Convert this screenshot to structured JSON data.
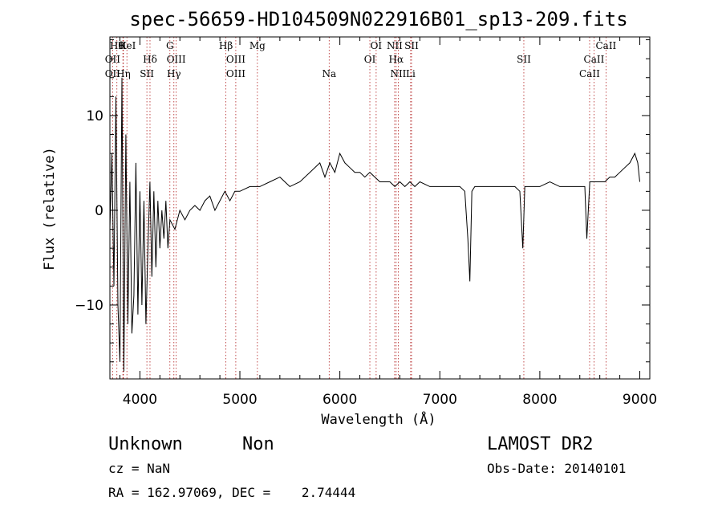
{
  "chart_data": {
    "type": "line",
    "title": "spec-56659-HD104509N022916B01_sp13-209.fits",
    "xlabel": "Wavelength (Å)",
    "ylabel": "Flux (relative)",
    "xlim": [
      3700,
      9100
    ],
    "ylim": [
      -17.8,
      18.3
    ],
    "x_ticks": [
      4000,
      5000,
      6000,
      7000,
      8000,
      9000
    ],
    "y_ticks": [
      -10,
      0,
      10
    ],
    "series": [
      {
        "x": [
          3700,
          3720,
          3740,
          3760,
          3780,
          3800,
          3820,
          3840,
          3860,
          3880,
          3900,
          3920,
          3940,
          3960,
          3980,
          4000,
          4020,
          4040,
          4060,
          4080,
          4100,
          4120,
          4140,
          4160,
          4180,
          4200,
          4220,
          4240,
          4260,
          4280,
          4300,
          4350,
          4400,
          4450,
          4500,
          4550,
          4600,
          4650,
          4700,
          4750,
          4800,
          4850,
          4900,
          4950,
          5000,
          5100,
          5200,
          5300,
          5400,
          5500,
          5600,
          5700,
          5800,
          5850,
          5900,
          5950,
          6000,
          6050,
          6100,
          6150,
          6200,
          6250,
          6300,
          6350,
          6400,
          6450,
          6500,
          6550,
          6600,
          6650,
          6700,
          6750,
          6800,
          6900,
          7000,
          7100,
          7200,
          7250,
          7280,
          7300,
          7320,
          7350,
          7400,
          7500,
          7600,
          7700,
          7750,
          7800,
          7830,
          7850,
          7900,
          8000,
          8100,
          8200,
          8300,
          8400,
          8450,
          8470,
          8500,
          8550,
          8600,
          8650,
          8700,
          8750,
          8800,
          8850,
          8900,
          8950,
          8980,
          9000
        ],
        "y": [
          -2,
          6,
          -8,
          12,
          -10,
          -16,
          14,
          -17,
          8,
          -12,
          3,
          -13,
          -9,
          5,
          -11,
          2,
          -10,
          1,
          -12,
          -4,
          3,
          -7,
          2,
          -6,
          1,
          -4,
          0,
          -3,
          1,
          -4,
          -1,
          -2,
          0,
          -1,
          0,
          0.5,
          0,
          1,
          1.5,
          0,
          1,
          2,
          1,
          2,
          2,
          2.5,
          2.5,
          3,
          3.5,
          2.5,
          3,
          4,
          5,
          3.5,
          5,
          4,
          6,
          5,
          4.5,
          4,
          4,
          3.5,
          4,
          3.5,
          3,
          3,
          3,
          2.5,
          3,
          2.5,
          3,
          2.5,
          3,
          2.5,
          2.5,
          2.5,
          2.5,
          2,
          -3,
          -7.5,
          2,
          2.5,
          2.5,
          2.5,
          2.5,
          2.5,
          2.5,
          2,
          -4,
          2.5,
          2.5,
          2.5,
          3,
          2.5,
          2.5,
          2.5,
          2.5,
          -3,
          3,
          3,
          3,
          3,
          3.5,
          3.5,
          4,
          4.5,
          5,
          6,
          5,
          3
        ]
      }
    ],
    "annotations": {
      "lines_top": [
        {
          "x": 3770,
          "label": "Hθ"
        },
        {
          "x": 3830,
          "label": "K"
        },
        {
          "x": 3870,
          "label": "HeI"
        },
        {
          "x": 4300,
          "label": "G"
        },
        {
          "x": 4860,
          "label": "Hβ"
        },
        {
          "x": 5175,
          "label": "Mg"
        },
        {
          "x": 6363,
          "label": "OI"
        },
        {
          "x": 6548,
          "label": "NII"
        },
        {
          "x": 6717,
          "label": "SII"
        },
        {
          "x": 8662,
          "label": "CaII"
        }
      ],
      "lines_mid": [
        {
          "x": 3727,
          "label": "OII"
        },
        {
          "x": 4101,
          "label": "Hδ"
        },
        {
          "x": 4363,
          "label": "OIII"
        },
        {
          "x": 4959,
          "label": "OIII"
        },
        {
          "x": 6300,
          "label": "OI"
        },
        {
          "x": 6563,
          "label": "Hα"
        },
        {
          "x": 7840,
          "label": "SII"
        },
        {
          "x": 8542,
          "label": "CaII"
        }
      ],
      "lines_bot": [
        {
          "x": 3727,
          "label": "OII"
        },
        {
          "x": 3835,
          "label": "Hη"
        },
        {
          "x": 4070,
          "label": "SII"
        },
        {
          "x": 4340,
          "label": "Hγ"
        },
        {
          "x": 4959,
          "label": "OIII"
        },
        {
          "x": 5893,
          "label": "Na"
        },
        {
          "x": 6584,
          "label": "NII"
        },
        {
          "x": 6708,
          "label": "Li"
        },
        {
          "x": 8498,
          "label": "CaII"
        }
      ]
    }
  },
  "footer": {
    "class_label": "Unknown",
    "subclass_label": "Non",
    "survey_label": "LAMOST DR2",
    "cz_text": "cz = NaN",
    "obs_date_text": "Obs-Date: 20140101",
    "radec_text": "RA = 162.97069, DEC =    2.74444"
  }
}
